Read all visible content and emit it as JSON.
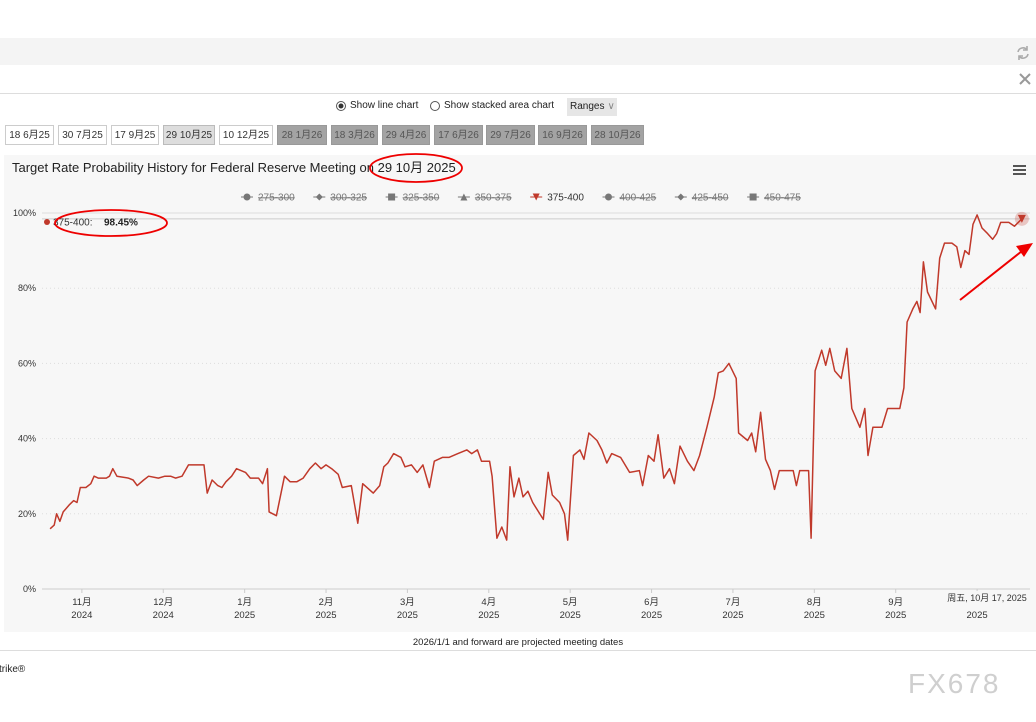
{
  "toolbar": {
    "line_option": "Show line chart",
    "area_option": "Show stacked area chart",
    "ranges": "Ranges"
  },
  "tabs": [
    {
      "label": "18 6月25",
      "state": "normal"
    },
    {
      "label": "30 7月25",
      "state": "normal"
    },
    {
      "label": "17 9月25",
      "state": "normal"
    },
    {
      "label": "29 10月25",
      "state": "selected"
    },
    {
      "label": "10 12月25",
      "state": "normal"
    },
    {
      "label": "28 1月26",
      "state": "disabled"
    },
    {
      "label": "18 3月26",
      "state": "disabled"
    },
    {
      "label": "29 4月26",
      "state": "disabled"
    },
    {
      "label": "17 6月26",
      "state": "disabled"
    },
    {
      "label": "29 7月26",
      "state": "disabled"
    },
    {
      "label": "16 9月26",
      "state": "disabled"
    },
    {
      "label": "28 10月26",
      "state": "disabled"
    }
  ],
  "footer_note": "2026/1/1 and forward are projected meeting dates",
  "brand_fragment": "trike®",
  "watermark": "FX678",
  "chart_data": {
    "type": "line",
    "title": "Target Rate Probability History for Federal Reserve Meeting on 29 10月 2025",
    "xlim": [
      -0.49,
      11.65
    ],
    "xticks": [
      {
        "value": 0,
        "label": "11月\n2024"
      },
      {
        "value": 1,
        "label": "12月\n2024"
      },
      {
        "value": 2,
        "label": "1月\n2025"
      },
      {
        "value": 3,
        "label": "2月\n2025"
      },
      {
        "value": 4,
        "label": "3月\n2025"
      },
      {
        "value": 5,
        "label": "4月\n2025"
      },
      {
        "value": 6,
        "label": "5月\n2025"
      },
      {
        "value": 7,
        "label": "6月\n2025"
      },
      {
        "value": 8,
        "label": "7月\n2025"
      },
      {
        "value": 9,
        "label": "8月\n2025"
      },
      {
        "value": 10,
        "label": "9月\n2025"
      },
      {
        "value": 11,
        "label": "\n2025"
      }
    ],
    "ylim": [
      0,
      100
    ],
    "yticks": [
      {
        "value": 0,
        "label": "0%"
      },
      {
        "value": 20,
        "label": "20%"
      },
      {
        "value": 40,
        "label": "40%"
      },
      {
        "value": 60,
        "label": "60%"
      },
      {
        "value": 80,
        "label": "80%"
      },
      {
        "value": 100,
        "label": "100%"
      }
    ],
    "grid": true,
    "series": [
      {
        "name": "275-300",
        "marker": "circle",
        "hidden": true
      },
      {
        "name": "300-325",
        "marker": "diamond",
        "hidden": true
      },
      {
        "name": "325-350",
        "marker": "square",
        "hidden": true
      },
      {
        "name": "350-375",
        "marker": "triangle",
        "hidden": true
      },
      {
        "name": "375-400",
        "marker": "triangle-down",
        "hidden": false,
        "color": "#c0392b",
        "x": [
          -0.39,
          -0.34,
          -0.31,
          -0.27,
          -0.23,
          -0.15,
          -0.1,
          -0.06,
          -0.02,
          0.05,
          0.11,
          0.15,
          0.2,
          0.3,
          0.34,
          0.38,
          0.43,
          0.57,
          0.63,
          0.68,
          0.76,
          0.82,
          0.94,
          1.02,
          1.09,
          1.15,
          1.23,
          1.31,
          1.41,
          1.5,
          1.54,
          1.6,
          1.67,
          1.72,
          1.77,
          1.84,
          1.9,
          2.01,
          2.07,
          2.17,
          2.22,
          2.28,
          2.3,
          2.39,
          2.49,
          2.56,
          2.64,
          2.72,
          2.8,
          2.87,
          2.94,
          3,
          3.07,
          3.15,
          3.2,
          3.31,
          3.39,
          3.45,
          3.58,
          3.66,
          3.71,
          3.76,
          3.83,
          3.92,
          3.97,
          4.05,
          4.12,
          4.19,
          4.27,
          4.33,
          4.43,
          4.51,
          4.62,
          4.73,
          4.79,
          4.86,
          4.91,
          5.01,
          5.04,
          5.1,
          5.16,
          5.22,
          5.26,
          5.31,
          5.37,
          5.42,
          5.48,
          5.54,
          5.67,
          5.73,
          5.78,
          5.87,
          5.93,
          5.97,
          6.04,
          6.12,
          6.17,
          6.23,
          6.33,
          6.39,
          6.45,
          6.51,
          6.62,
          6.73,
          6.85,
          6.89,
          6.96,
          7.03,
          7.08,
          7.15,
          7.22,
          7.28,
          7.35,
          7.44,
          7.52,
          7.59,
          7.68,
          7.77,
          7.82,
          7.88,
          7.95,
          8.04,
          8.07,
          8.18,
          8.23,
          8.28,
          8.34,
          8.4,
          8.46,
          8.51,
          8.57,
          8.66,
          8.74,
          8.78,
          8.82,
          8.93,
          8.96,
          9.01,
          9.09,
          9.14,
          9.19,
          9.25,
          9.33,
          9.4,
          9.46,
          9.56,
          9.62,
          9.66,
          9.72,
          9.83,
          9.9,
          10.05,
          10.1,
          10.14,
          10.21,
          10.26,
          10.3,
          10.34,
          10.39,
          10.49,
          10.54,
          10.6,
          10.69,
          10.75,
          10.8,
          10.85,
          10.9,
          10.95,
          11,
          11.06,
          11.13,
          11.19,
          11.24,
          11.29,
          11.39,
          11.46,
          11.55
        ],
        "values": [
          16,
          17,
          20,
          18,
          20.5,
          22.5,
          23.5,
          23,
          27,
          27,
          28,
          30,
          29.5,
          29.5,
          30,
          32,
          30,
          29.5,
          29,
          27.5,
          29,
          30,
          29.5,
          30,
          30,
          29.5,
          30,
          33,
          33,
          33,
          25.5,
          29,
          27.5,
          27,
          28.5,
          30,
          32,
          31,
          29.5,
          29.5,
          28,
          32,
          20.5,
          19.5,
          30,
          28.5,
          28.5,
          29.5,
          32,
          33.5,
          32,
          33,
          32,
          30.5,
          27,
          27.5,
          17.5,
          28,
          25.5,
          27.5,
          32.5,
          33.5,
          36,
          35,
          32.5,
          33,
          31,
          33,
          27,
          34,
          35,
          35,
          36,
          37,
          36,
          37,
          34,
          34,
          30,
          13.5,
          16.5,
          13,
          32.5,
          24.5,
          29.5,
          24.5,
          26,
          23,
          18.5,
          31,
          25,
          23,
          20,
          13,
          35.5,
          37,
          34.5,
          41.5,
          39.5,
          37,
          33.5,
          36,
          35,
          31,
          31.5,
          27.5,
          35.5,
          34,
          41,
          29.5,
          32,
          28,
          38,
          34,
          31.5,
          35.5,
          43,
          51,
          57.5,
          58,
          60,
          56,
          41.5,
          39.5,
          41.5,
          36.5,
          47,
          34.5,
          31.5,
          26.5,
          31.5,
          31.5,
          31.5,
          27.5,
          31.5,
          31.5,
          13.5,
          58,
          63.5,
          59.5,
          64,
          58,
          56,
          64,
          48,
          43,
          48,
          35.5,
          43,
          43,
          48,
          48,
          53.5,
          71,
          74.5,
          76.5,
          73.5,
          87,
          79,
          74.5,
          88,
          92,
          92,
          91,
          85.5,
          90,
          89,
          97,
          99.5,
          96,
          94.5,
          93,
          94.5,
          97.5,
          97.5,
          96.5,
          98.45
        ]
      },
      {
        "name": "400-425",
        "marker": "circle",
        "hidden": true
      },
      {
        "name": "425-450",
        "marker": "diamond",
        "hidden": true
      },
      {
        "name": "450-475",
        "marker": "square",
        "hidden": true
      }
    ],
    "tooltip": {
      "name": "375-400:",
      "value_label": "98.45%",
      "date": "周五, 10月 17, 2025"
    }
  }
}
